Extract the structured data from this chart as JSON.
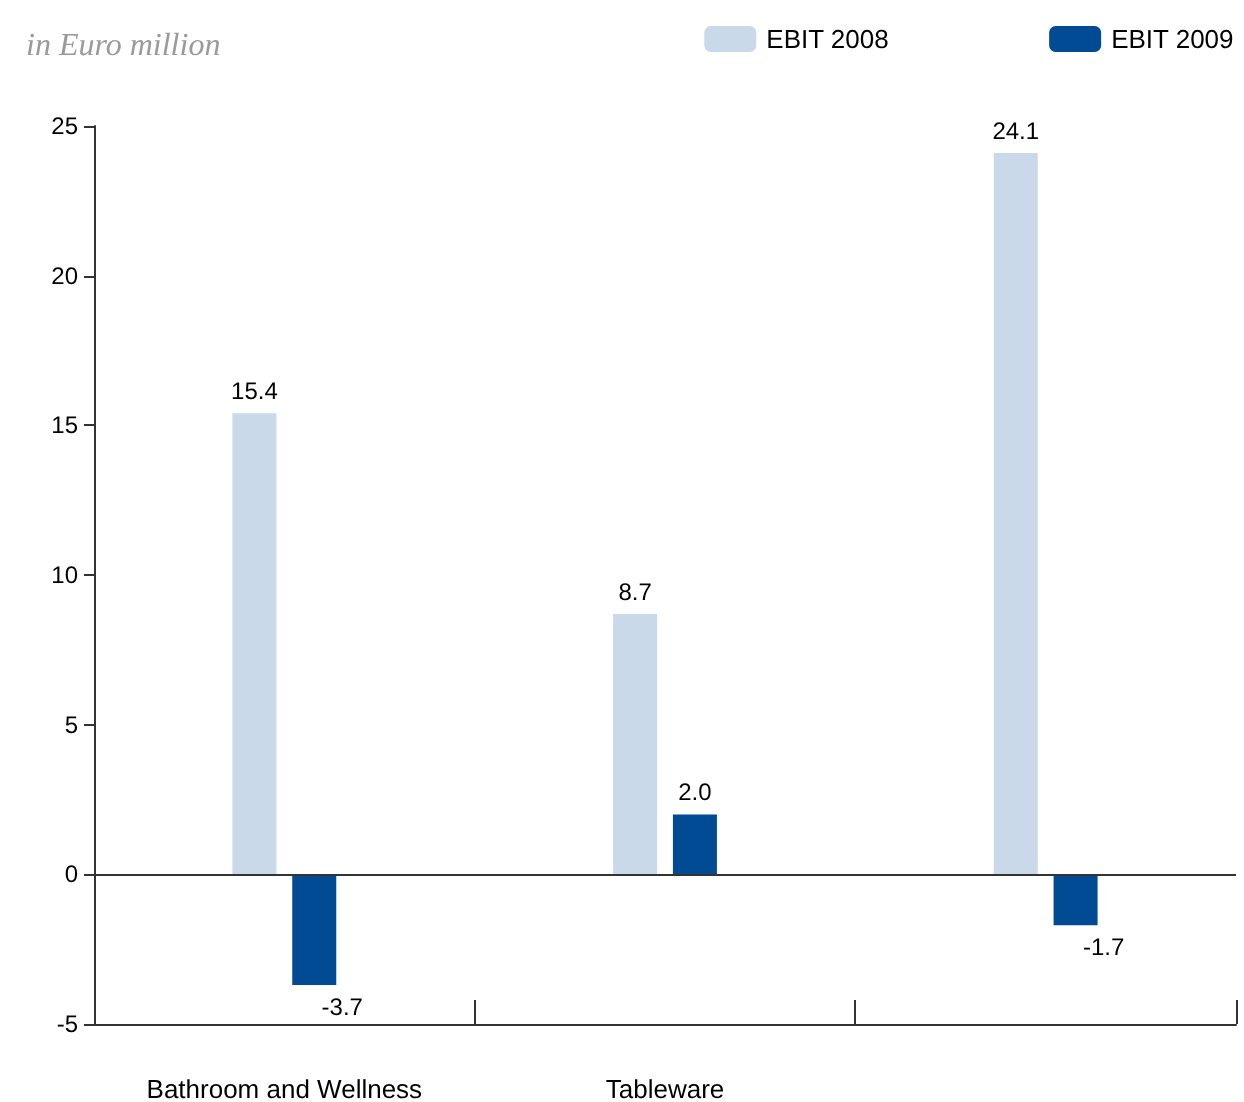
{
  "chart_data": {
    "type": "bar",
    "ylabel": "in Euro million",
    "categories": [
      "Bathroom and Wellness",
      "Tableware",
      null
    ],
    "series": [
      {
        "name": "EBIT 2008",
        "color": "#c9d9e9",
        "values": [
          15.4,
          8.7,
          24.1
        ]
      },
      {
        "name": "EBIT 2009",
        "color": "#004b93",
        "values": [
          -3.7,
          2.0,
          -1.7
        ]
      }
    ],
    "value_labels": [
      [
        "15.4",
        "8.7",
        "24.1"
      ],
      [
        "-3.7",
        "2.0",
        "-1.7"
      ]
    ],
    "ylim": [
      -5,
      25
    ],
    "yticks": [
      -5,
      0,
      5,
      10,
      15,
      20,
      25
    ],
    "ref_lines": [
      {
        "axis": "y",
        "value": 0,
        "color": "#333333"
      }
    ],
    "grid": false,
    "legend": "top right"
  }
}
